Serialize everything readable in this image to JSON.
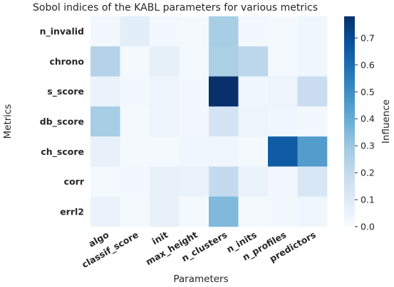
{
  "chart_data": {
    "type": "heatmap",
    "title": "Sobol indices of the KABL parameters for various metrics",
    "xlabel": "Parameters",
    "ylabel": "Metrics",
    "colorbar_label": "Influence",
    "colormap": "Blues",
    "vmin": 0.0,
    "vmax": 0.78,
    "colorbar_ticks": [
      "0.0",
      "0.1",
      "0.2",
      "0.3",
      "0.4",
      "0.5",
      "0.6",
      "0.7"
    ],
    "columns": [
      "algo",
      "classif_score",
      "init",
      "max_height",
      "n_clusters",
      "n_inits",
      "n_profiles",
      "predictors"
    ],
    "rows": [
      "n_invalid",
      "chrono",
      "s_score",
      "db_score",
      "ch_score",
      "corr",
      "errl2"
    ],
    "values": [
      [
        0.02,
        0.08,
        0.02,
        0.01,
        0.27,
        0.02,
        0.01,
        0.03
      ],
      [
        0.24,
        0.01,
        0.07,
        0.01,
        0.26,
        0.22,
        0.01,
        0.03
      ],
      [
        0.05,
        0.02,
        0.04,
        0.02,
        0.78,
        0.03,
        0.04,
        0.18
      ],
      [
        0.27,
        0.01,
        0.04,
        0.02,
        0.14,
        0.04,
        0.03,
        0.02
      ],
      [
        0.06,
        0.01,
        0.01,
        0.03,
        0.03,
        0.01,
        0.65,
        0.45
      ],
      [
        0.01,
        0.02,
        0.06,
        0.05,
        0.2,
        0.05,
        0.02,
        0.12
      ],
      [
        0.05,
        0.01,
        0.06,
        0.01,
        0.35,
        0.01,
        0.02,
        0.03
      ]
    ]
  }
}
